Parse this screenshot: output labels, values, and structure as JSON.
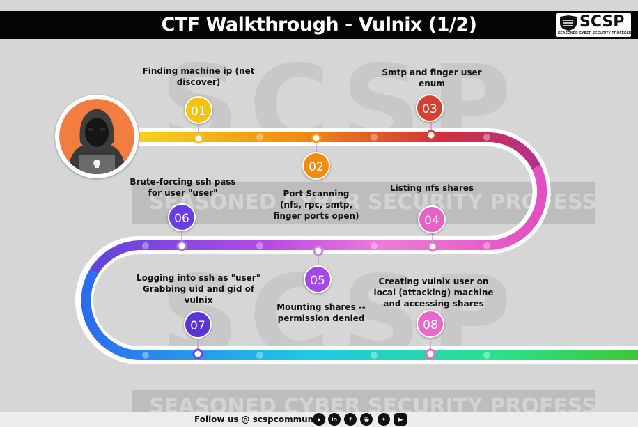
{
  "header": {
    "title": "CTF Walkthrough - Vulnix (1/2)",
    "logo_text": "SCSP",
    "logo_subtitle": "SEASONED CYBER SECURITY PROFESSIONALS"
  },
  "watermark": {
    "big_text": "SCSP",
    "band_text": "SEASONED CYBER SECURITY PROFESSIONALS"
  },
  "steps": [
    {
      "number": "01",
      "label": "Finding machine ip (net discover)",
      "color": "#f2c40f"
    },
    {
      "number": "02",
      "label": "Port Scanning (nfs, rpc, smtp, finger ports open)",
      "color": "#f18c0d"
    },
    {
      "number": "03",
      "label": "Smtp and finger user enum",
      "color": "#d7402f"
    },
    {
      "number": "04",
      "label": "Listing nfs shares",
      "color": "#e563c7"
    },
    {
      "number": "05",
      "label": "Mounting shares -- permission denied",
      "color": "#a447e6"
    },
    {
      "number": "06",
      "label": "Brute-forcing ssh pass for user \"user\"",
      "color": "#6a3de6"
    },
    {
      "number": "07",
      "label": "Logging into ssh as \"user\" Grabbing uid and gid of vulnix",
      "color": "#5b34d6"
    },
    {
      "number": "08",
      "label": "Creating vulnix user on local (attacking) machine and accessing shares",
      "color": "#ec67cc"
    }
  ],
  "footer": {
    "follow_text": "Follow us @ scspcommunity",
    "social_icons": [
      "github-icon",
      "linkedin-icon",
      "facebook-icon",
      "instagram-icon",
      "twitter-icon",
      "youtube-icon"
    ]
  }
}
